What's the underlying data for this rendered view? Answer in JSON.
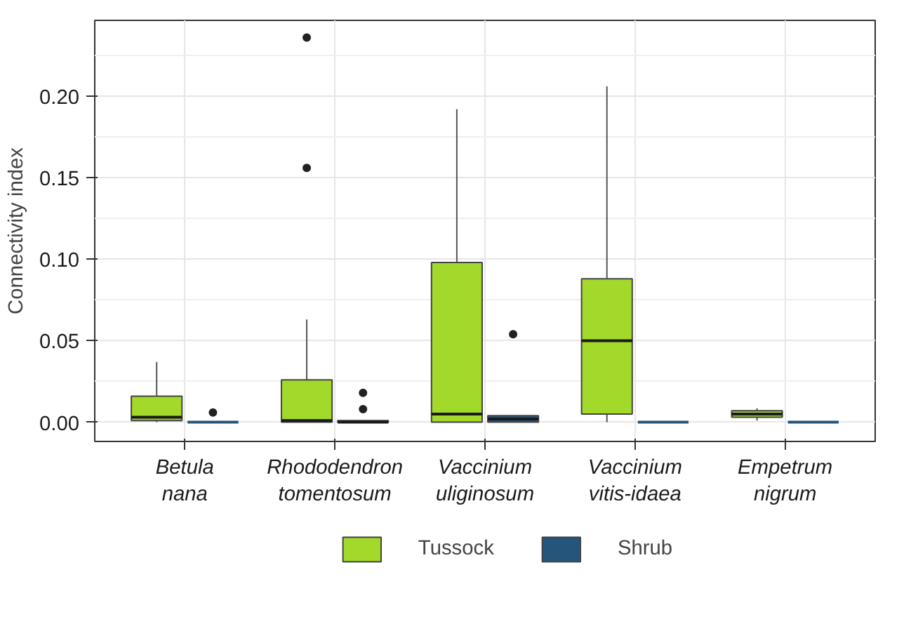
{
  "chart_data": {
    "type": "box",
    "ylabel": "Connectivity index",
    "categories": [
      "Betula nana",
      "Rhododendron tomentosum",
      "Vaccinium uliginosum",
      "Vaccinium vitis-idaea",
      "Empetrum nigrum"
    ],
    "series": [
      {
        "name": "Tussock",
        "color": "#a3d92a",
        "boxes": [
          {
            "low": 0,
            "q1": 0.001,
            "median": 0.003,
            "q3": 0.016,
            "high": 0.037
          },
          {
            "low": 0,
            "q1": 0,
            "median": 0.001,
            "q3": 0.026,
            "high": 0.063,
            "outliers": [
              0.156,
              0.236
            ]
          },
          {
            "low": 0,
            "q1": 0,
            "median": 0.005,
            "q3": 0.098,
            "high": 0.192
          },
          {
            "low": 0,
            "q1": 0.005,
            "median": 0.05,
            "q3": 0.088,
            "high": 0.206
          },
          {
            "low": 0.001,
            "q1": 0.003,
            "median": 0.005,
            "q3": 0.007,
            "high": 0.0085
          }
        ]
      },
      {
        "name": "Shrub",
        "color": "#25557a",
        "boxes": [
          {
            "low": 0,
            "q1": 0,
            "median": 0,
            "q3": 0,
            "high": 0,
            "outliers": [
              0.006
            ]
          },
          {
            "low": 0,
            "q1": 0,
            "median": 0,
            "q3": 0.001,
            "high": 0.001,
            "outliers": [
              0.008,
              0.018
            ]
          },
          {
            "low": 0,
            "q1": 0,
            "median": 0.002,
            "q3": 0.004,
            "high": 0.004,
            "outliers": [
              0.054
            ]
          },
          {
            "low": 0,
            "q1": 0,
            "median": 0,
            "q3": 0,
            "high": 0
          },
          {
            "low": 0,
            "q1": 0,
            "median": 0,
            "q3": 0,
            "high": 0
          }
        ]
      }
    ],
    "ylim": [
      -0.0118,
      0.2465
    ],
    "yticks": [
      {
        "value": 0,
        "label": "0.00"
      },
      {
        "value": 0.05,
        "label": "0.05"
      },
      {
        "value": 0.1,
        "label": "0.10"
      },
      {
        "value": 0.15,
        "label": "0.15"
      },
      {
        "value": 0.2,
        "label": "0.20"
      }
    ],
    "grid": true,
    "legend": "bottom"
  }
}
